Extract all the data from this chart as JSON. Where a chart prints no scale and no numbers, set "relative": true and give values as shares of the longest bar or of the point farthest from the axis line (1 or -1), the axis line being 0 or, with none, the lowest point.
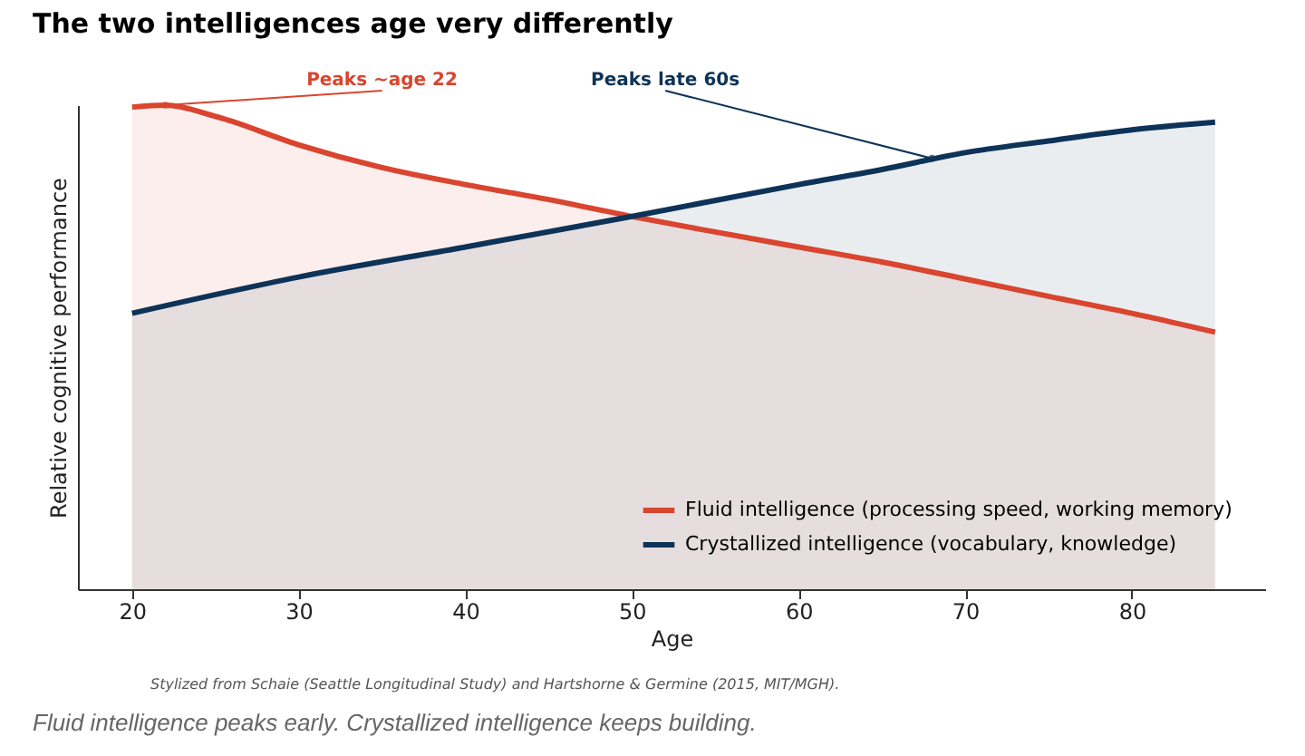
{
  "chart_data": {
    "type": "area",
    "title": "The two intelligences age very differently",
    "xlabel": "Age",
    "ylabel": "Relative cognitive performance",
    "relative": true,
    "legend": "bottom right",
    "grid": false,
    "marker": "none",
    "line_style": "solid",
    "xlim": [
      16.75,
      88
    ],
    "xticks": [
      20,
      30,
      40,
      50,
      60,
      70,
      80
    ],
    "series": [
      {
        "name": "Fluid intelligence (processing speed, working memory)",
        "color": "#d9452f",
        "x": [
          20,
          22,
          25,
          30,
          35,
          40,
          45,
          50,
          55,
          60,
          65,
          70,
          75,
          80,
          85
        ],
        "values": [
          0.996,
          1,
          0.977,
          0.918,
          0.871,
          0.836,
          0.805,
          0.77,
          0.738,
          0.707,
          0.676,
          0.641,
          0.605,
          0.57,
          0.531
        ]
      },
      {
        "name": "Crystallized intelligence (vocabulary, knowledge)",
        "color": "#0d3358",
        "x": [
          20,
          30,
          40,
          50,
          60,
          65,
          70,
          75,
          80,
          85
        ],
        "values": [
          0.57,
          0.645,
          0.707,
          0.77,
          0.836,
          0.867,
          0.902,
          0.926,
          0.949,
          0.965
        ]
      }
    ],
    "annotations": [
      {
        "text": "Peaks ~age 22",
        "x": 22,
        "y": 1
      },
      {
        "text": "Peaks late 60s",
        "x": 68,
        "y": 0.89
      },
      "Stylized from Schaie (Seattle Longitudinal Study) and Hartshorne & Germine (2015, MIT/MGH).",
      "Fluid intelligence peaks early. Crystallized intelligence keeps building."
    ]
  }
}
